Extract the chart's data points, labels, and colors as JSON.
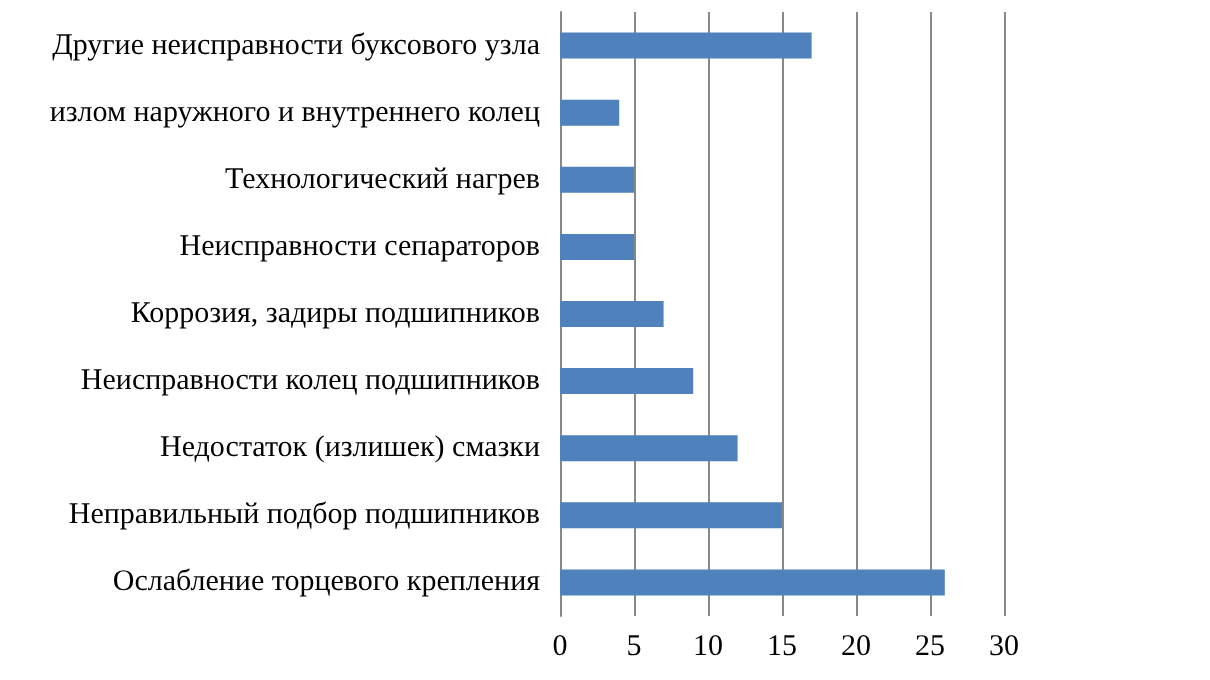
{
  "chart_data": {
    "type": "bar",
    "orientation": "horizontal",
    "categories": [
      "Другие неисправности буксового узла",
      "излом наружного и внутреннего колец",
      "Технологический нагрев",
      "Неисправности сепараторов",
      "Коррозия, задиры подшипников",
      "Неисправности колец подшипников",
      "Недостаток (излишек) смазки",
      "Неправильный подбор подшипников",
      "Ослабление торцевого крепления"
    ],
    "values": [
      17,
      4,
      5,
      5,
      7,
      9,
      12,
      15,
      26
    ],
    "color": "#4f81bd",
    "xlim": [
      0,
      30
    ],
    "xticks": [
      0,
      5,
      10,
      15,
      20,
      25,
      30
    ],
    "grid": "x"
  }
}
